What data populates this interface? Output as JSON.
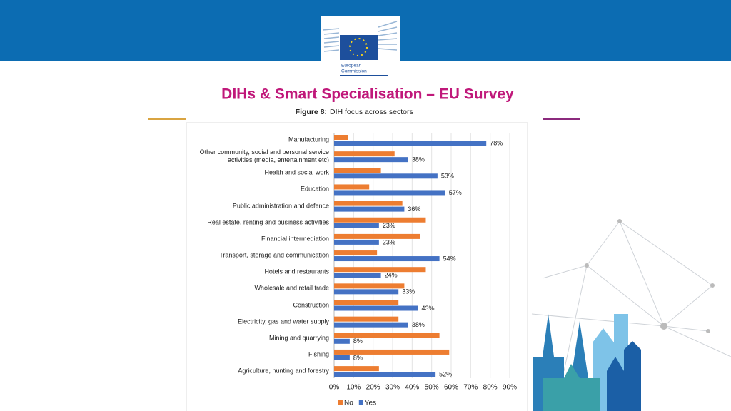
{
  "header": {
    "logo_text": [
      "European",
      "Commission"
    ],
    "title": "DIHs & Smart Specialisation – EU Survey",
    "figure_label": "Figure 8:",
    "figure_caption": "DIH focus across sectors"
  },
  "chart_data": {
    "type": "hbar",
    "categories": [
      "Manufacturing",
      "Other community, social and personal service\nactivities (media, entertainment etc)",
      "Health and social work",
      "Education",
      "Public administration and defence",
      "Real estate, renting and business activities",
      "Financial intermediation",
      "Transport, storage and communication",
      "Hotels and restaurants",
      "Wholesale and retail trade",
      "Construction",
      "Electricity, gas and water supply",
      "Mining and quarrying",
      "Fishing",
      "Agriculture, hunting and forestry"
    ],
    "series": [
      {
        "name": "No",
        "color": "#ed7d31",
        "values": [
          7,
          31,
          24,
          18,
          35,
          47,
          44,
          22,
          47,
          36,
          33,
          33,
          54,
          59,
          23
        ]
      },
      {
        "name": "Yes",
        "color": "#4472c4",
        "values": [
          78,
          38,
          53,
          57,
          36,
          23,
          23,
          54,
          24,
          33,
          43,
          38,
          8,
          8,
          52
        ],
        "value_labels": [
          "78%",
          "38%",
          "53%",
          "57%",
          "36%",
          "23%",
          "23%",
          "54%",
          "24%",
          "33%",
          "43%",
          "38%",
          "8%",
          "8%",
          "52%"
        ]
      }
    ],
    "xlim": [
      0,
      90
    ],
    "xticks": [
      {
        "value": 0,
        "label": "0%"
      },
      {
        "value": 10,
        "label": "10%"
      },
      {
        "value": 20,
        "label": "20%"
      },
      {
        "value": 30,
        "label": "30%"
      },
      {
        "value": 40,
        "label": "40%"
      },
      {
        "value": 50,
        "label": "50%"
      },
      {
        "value": 60,
        "label": "60%"
      },
      {
        "value": 70,
        "label": "70%"
      },
      {
        "value": 80,
        "label": "80%"
      },
      {
        "value": 90,
        "label": "90%"
      }
    ],
    "grid": true,
    "legend": "bottom"
  }
}
